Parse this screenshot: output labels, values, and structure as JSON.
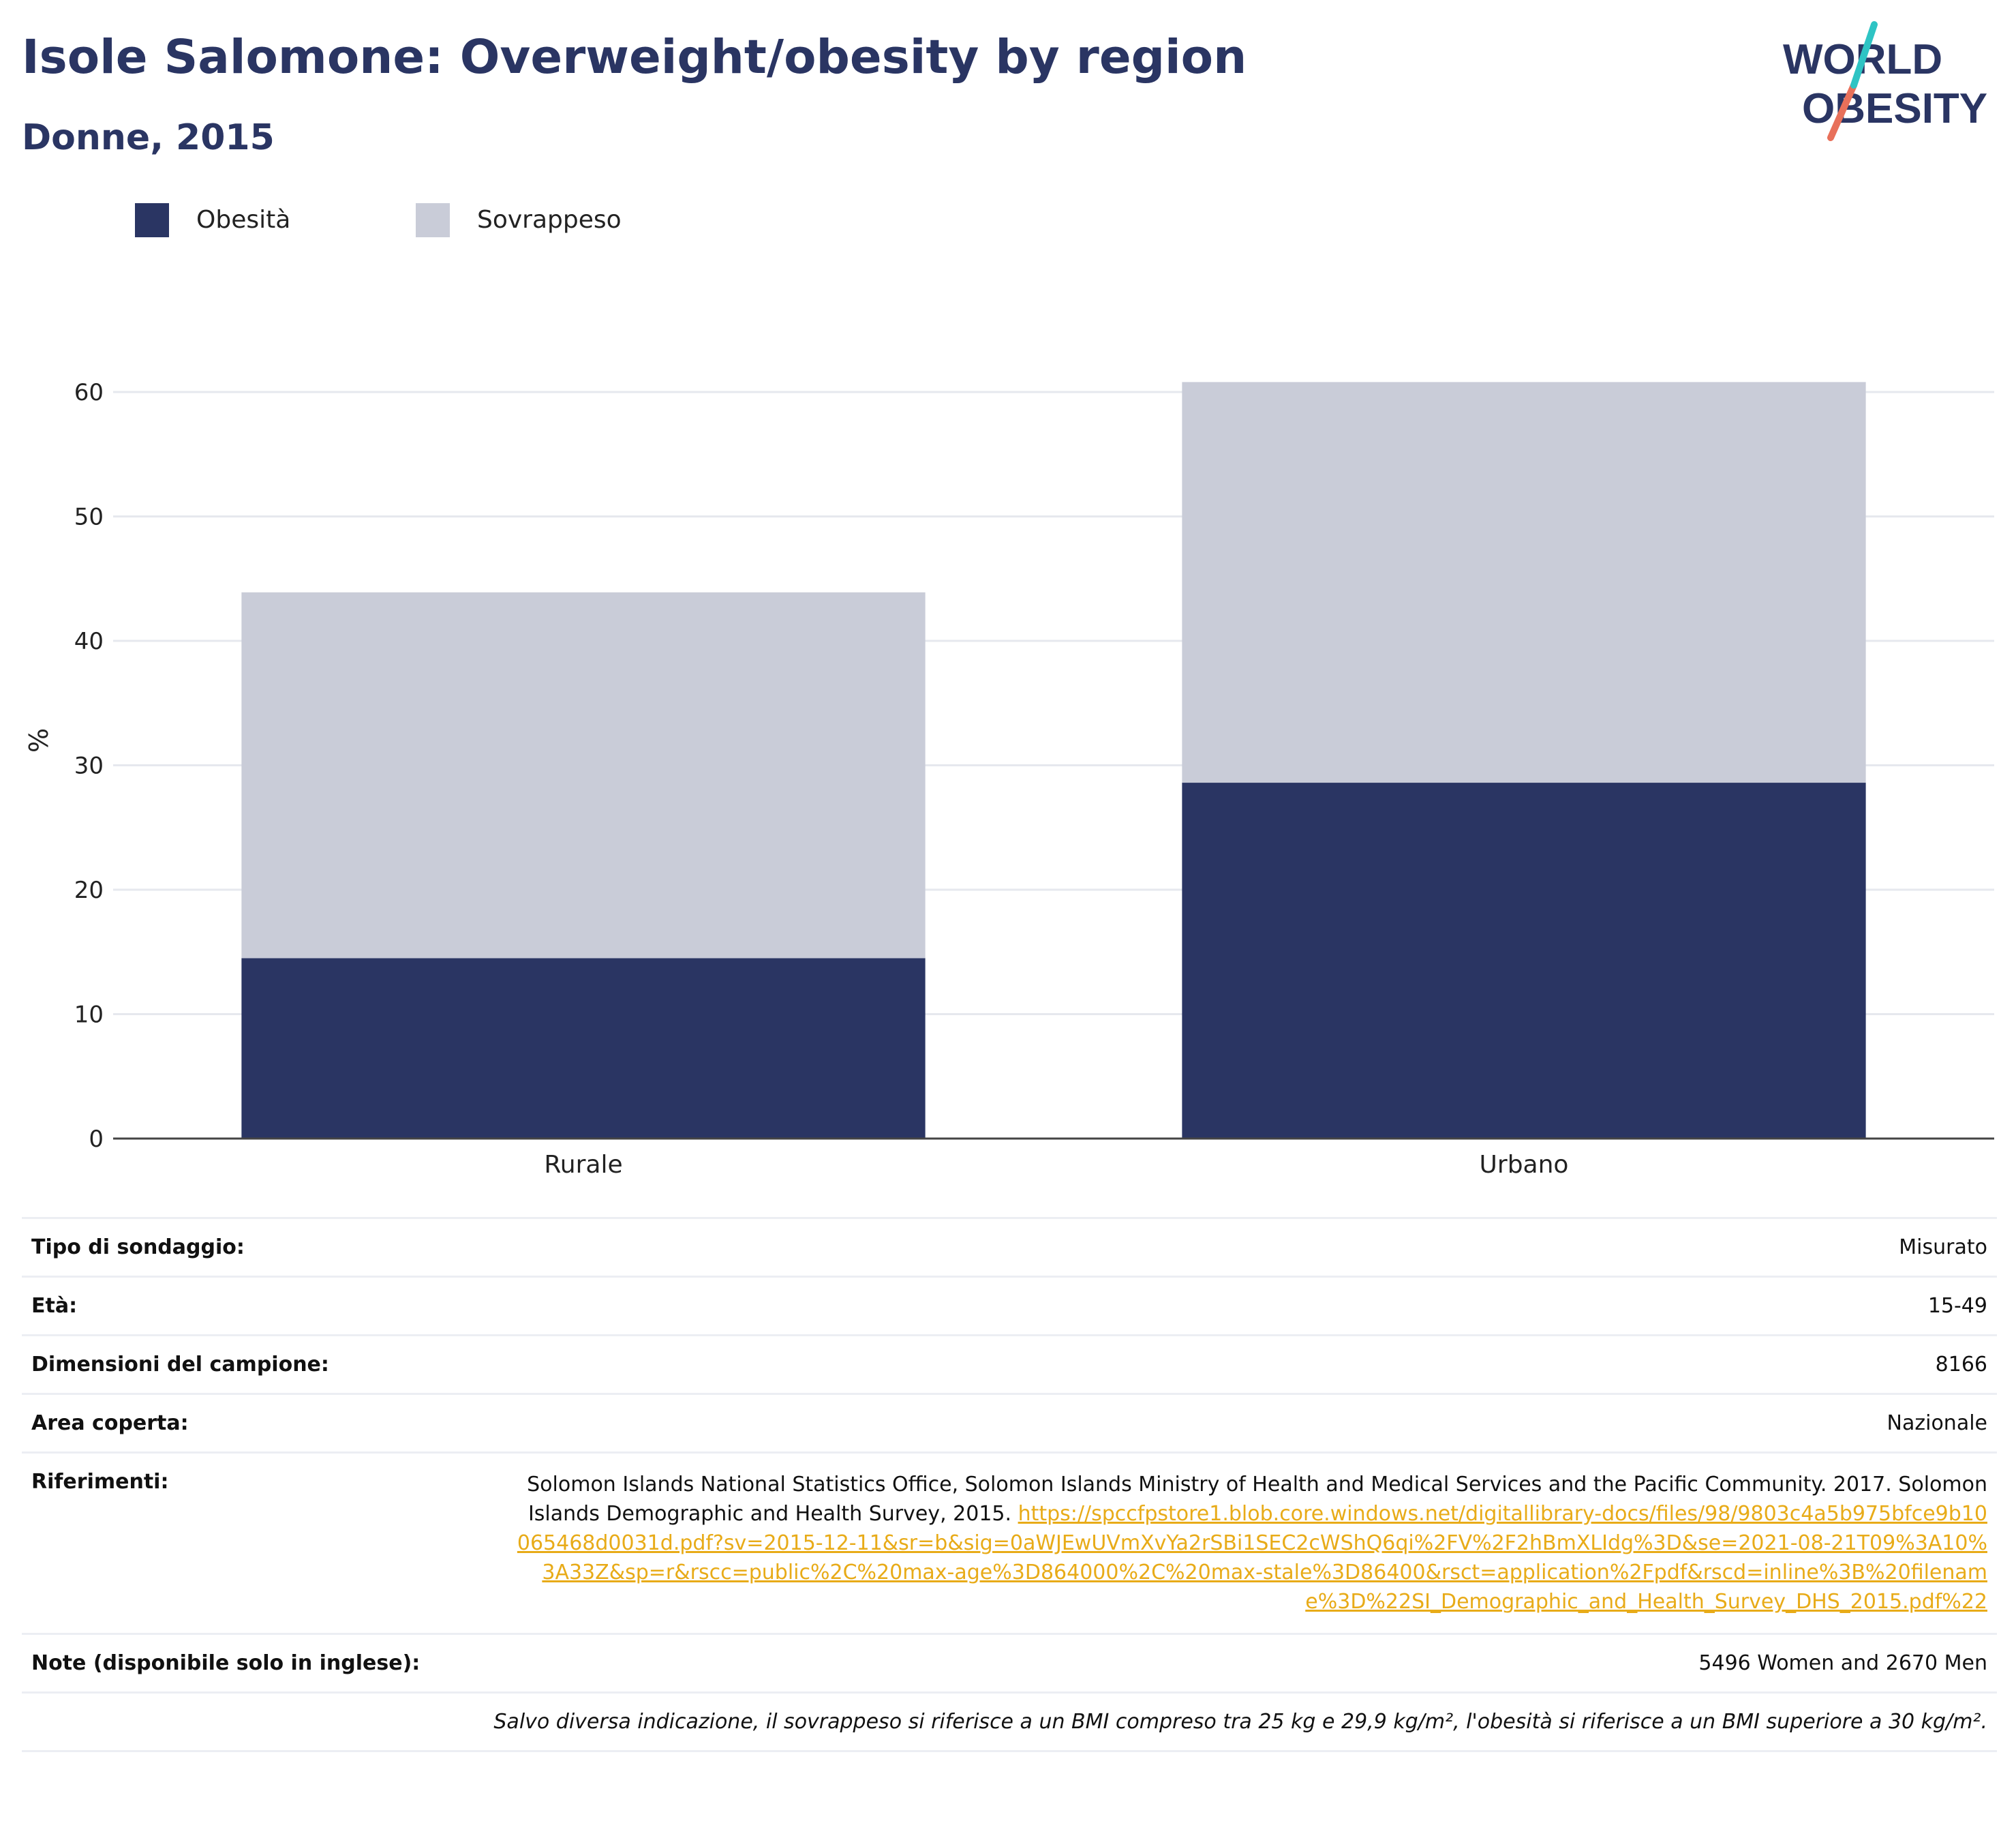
{
  "header": {
    "title": "Isole Salomone: Overweight/obesity by region",
    "subtitle": "Donne, 2015"
  },
  "logo": {
    "line1": "WORLD",
    "line2": "OBESITY"
  },
  "colors": {
    "obesity": "#2a3563",
    "overweight": "#c9ccd8",
    "title": "#2a3563",
    "link": "#e8ab18",
    "logo_teal": "#2ec4c4",
    "logo_coral": "#e8705a"
  },
  "legend": [
    {
      "label": "Obesità",
      "color": "#2a3563"
    },
    {
      "label": "Sovrappeso",
      "color": "#c9ccd8"
    }
  ],
  "chart_data": {
    "type": "bar",
    "stacked": true,
    "categories": [
      "Rurale",
      "Urbano"
    ],
    "series": [
      {
        "name": "Obesità",
        "values": [
          14.5,
          28.6
        ]
      },
      {
        "name": "Sovrappeso",
        "values": [
          29.4,
          32.2
        ]
      }
    ],
    "ylabel": "%",
    "ylim": [
      0,
      64
    ],
    "yticks": [
      0,
      10,
      20,
      30,
      40,
      50,
      60
    ],
    "grid": true,
    "legend_position": "top-left"
  },
  "info": {
    "rows": [
      {
        "label": "Tipo di sondaggio:",
        "value": "Misurato"
      },
      {
        "label": "Età:",
        "value": "15-49"
      },
      {
        "label": "Dimensioni del campione:",
        "value": "8166"
      },
      {
        "label": "Area coperta:",
        "value": "Nazionale"
      }
    ],
    "references": {
      "label": "Riferimenti:",
      "text": "Solomon Islands National Statistics Office, Solomon Islands Ministry of Health and Medical Services and the Pacific Community. 2017. Solomon Islands Demographic and Health Survey, 2015.",
      "link": "https://spccfpstore1.blob.core.windows.net/digitallibrary-docs/files/98/9803c4a5b975bfce9b10065468d0031d.pdf?sv=2015-12-11&sr=b&sig=0aWJEwUVmXvYa2rSBi1SEC2cWShQ6qi%2FV%2F2hBmXLIdg%3D&se=2021-08-21T09%3A10%3A33Z&sp=r&rscc=public%2C%20max-age%3D864000%2C%20max-stale%3D86400&rsct=application%2Fpdf&rscd=inline%3B%20filename%3D%22SI_Demographic_and_Health_Survey_DHS_2015.pdf%22"
    },
    "notes": {
      "label": "Note (disponibile solo in inglese):",
      "value": "5496 Women and 2670 Men"
    },
    "footnote": "Salvo diversa indicazione, il sovrappeso si riferisce a un BMI compreso tra 25 kg e 29,9 kg/m², l'obesità si riferisce a un BMI superiore a 30 kg/m²."
  }
}
